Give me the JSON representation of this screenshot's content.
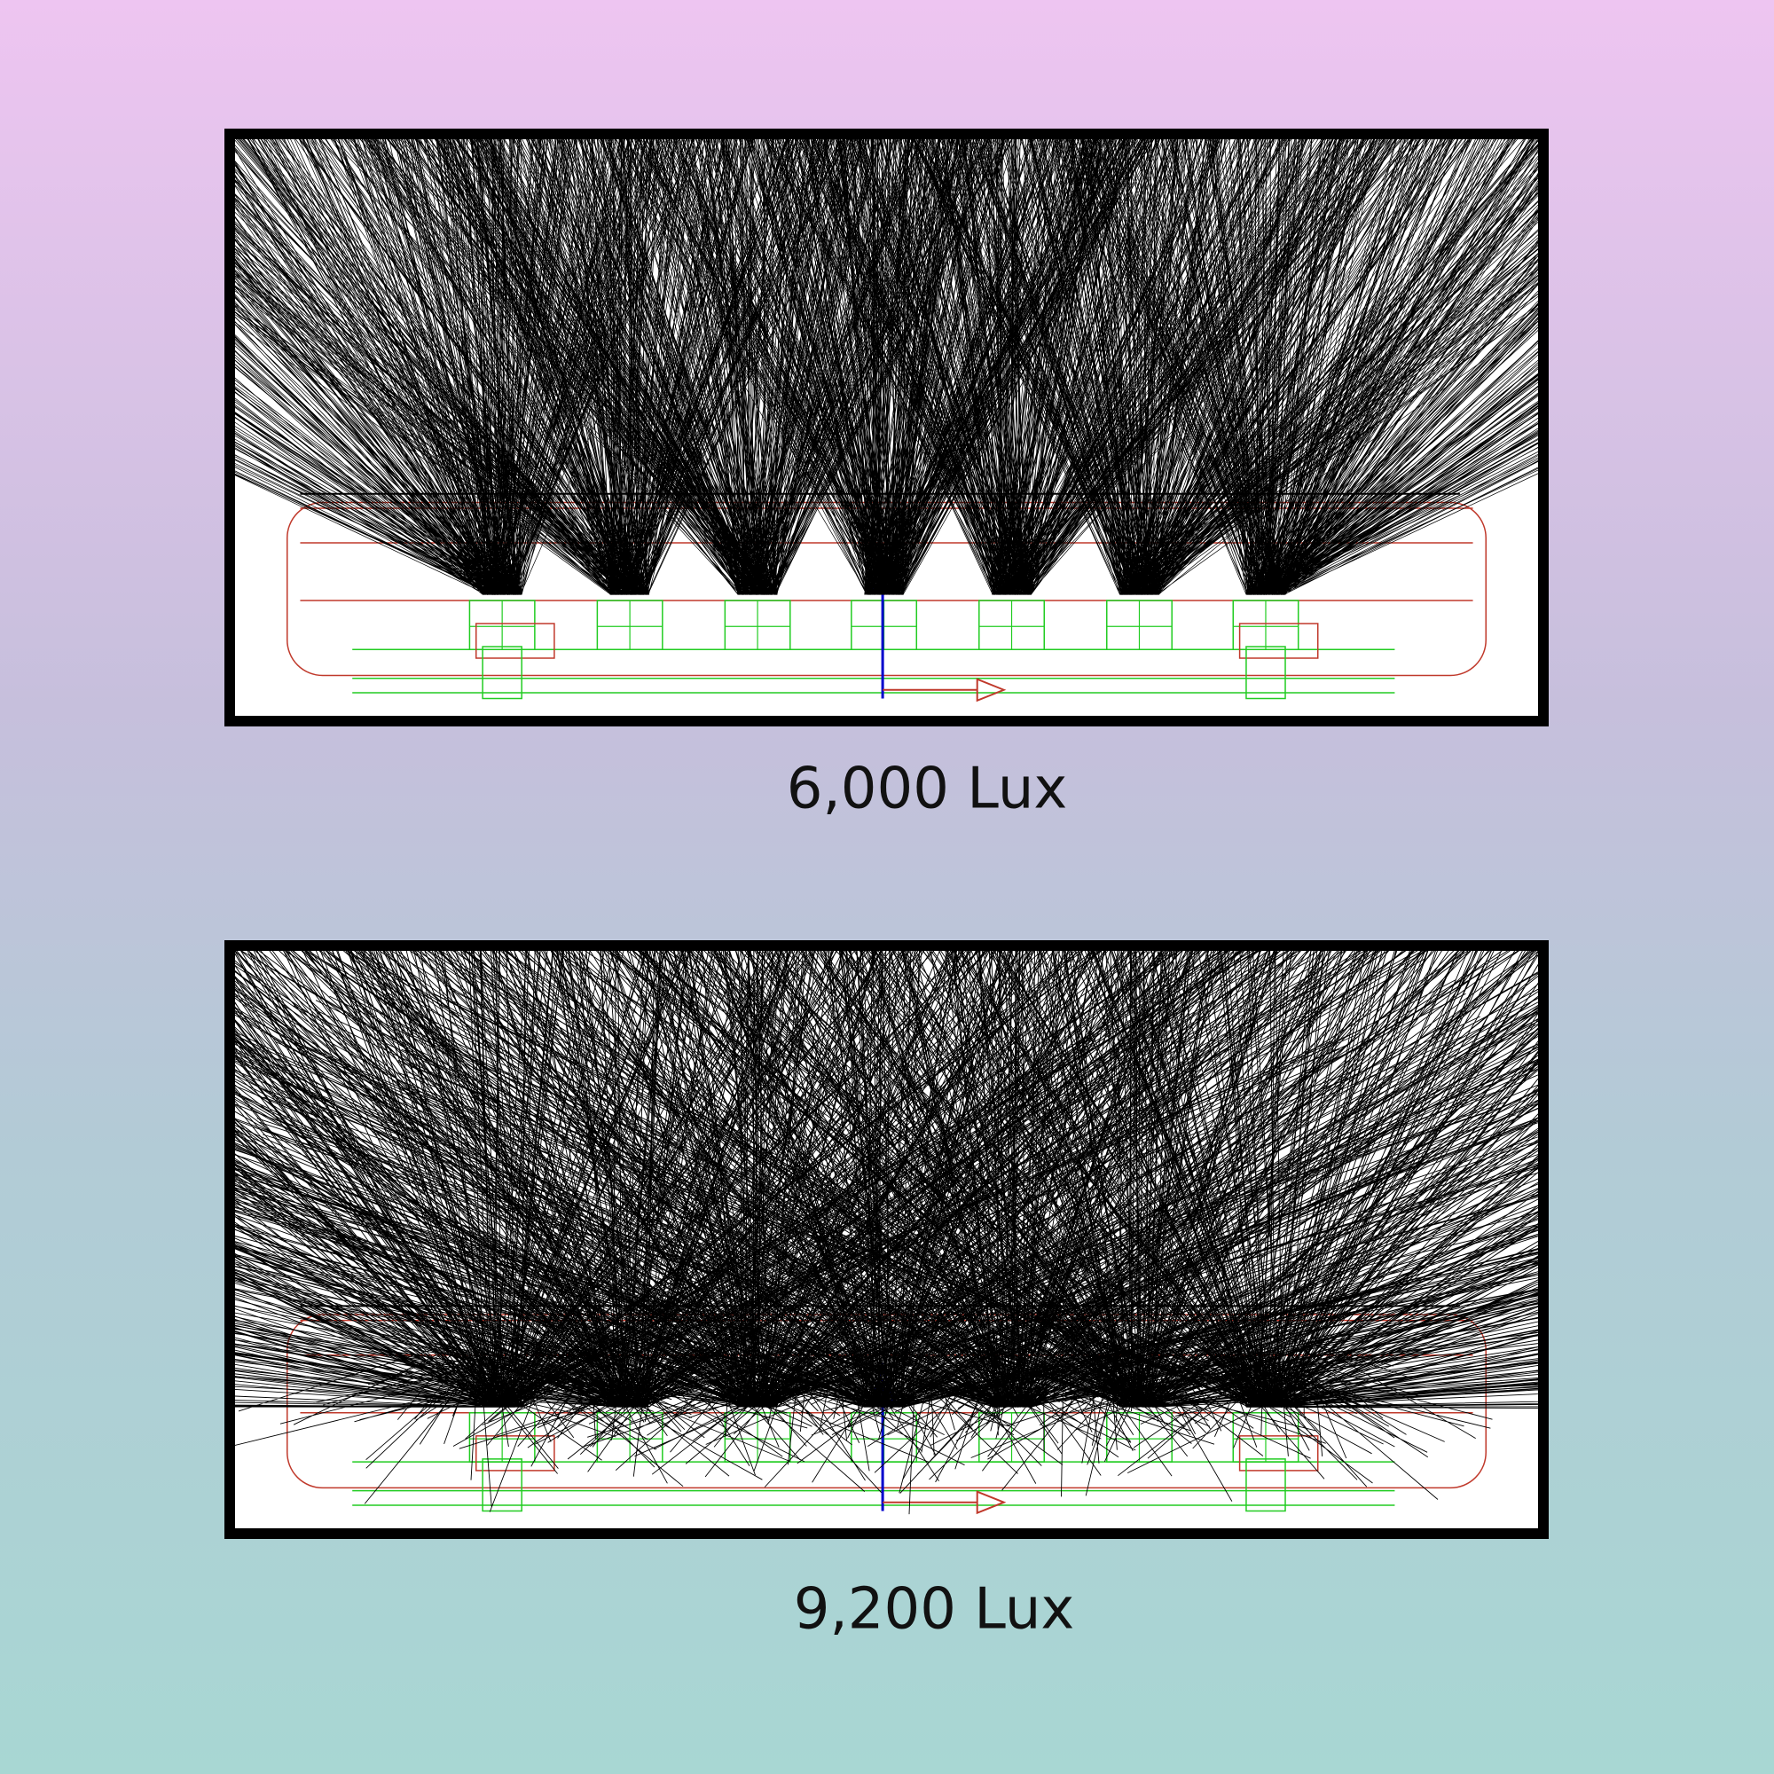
{
  "panels": [
    {
      "caption": "6,000 Lux"
    },
    {
      "caption": "9,200 Lux"
    }
  ]
}
